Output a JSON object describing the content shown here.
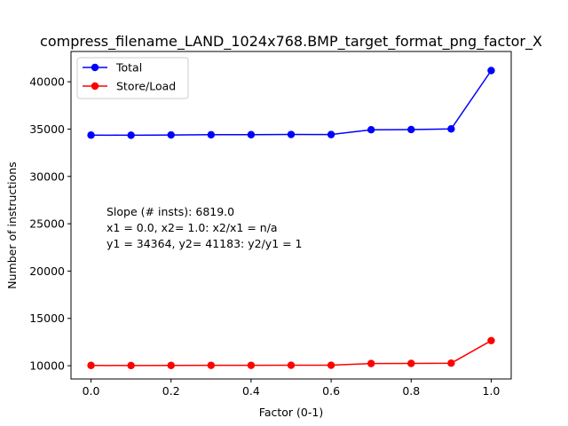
{
  "chart_data": {
    "type": "line",
    "title": "compress_filename_LAND_1024x768.BMP_target_format_png_factor_X",
    "xlabel": "Factor (0-1)",
    "ylabel": "Number of instructions",
    "xlim": [
      -0.05,
      1.05
    ],
    "ylim": [
      8600,
      43200
    ],
    "xticks": [
      0.0,
      0.2,
      0.4,
      0.6,
      0.8,
      1.0
    ],
    "xtick_labels": [
      "0.0",
      "0.2",
      "0.4",
      "0.6",
      "0.8",
      "1.0"
    ],
    "yticks": [
      10000,
      15000,
      20000,
      25000,
      30000,
      35000,
      40000
    ],
    "ytick_labels": [
      "10000",
      "15000",
      "20000",
      "25000",
      "30000",
      "35000",
      "40000"
    ],
    "grid": false,
    "legend_position": "top-left",
    "x": [
      0.0,
      0.1,
      0.2,
      0.3,
      0.4,
      0.5,
      0.6,
      0.7,
      0.8,
      0.9,
      1.0
    ],
    "series": [
      {
        "name": "Total",
        "color": "#0000ff",
        "values": [
          34364,
          34350,
          34380,
          34400,
          34410,
          34430,
          34420,
          34930,
          34950,
          35020,
          41183
        ]
      },
      {
        "name": "Store/Load",
        "color": "#ff0000",
        "values": [
          10030,
          10020,
          10030,
          10040,
          10040,
          10050,
          10050,
          10230,
          10240,
          10270,
          12650
        ]
      }
    ],
    "annotation": [
      "Slope (# insts): 6819.0",
      "x1 = 0.0, x2= 1.0: x2/x1 = n/a",
      "y1 = 34364, y2= 41183: y2/y1 = 1"
    ]
  }
}
